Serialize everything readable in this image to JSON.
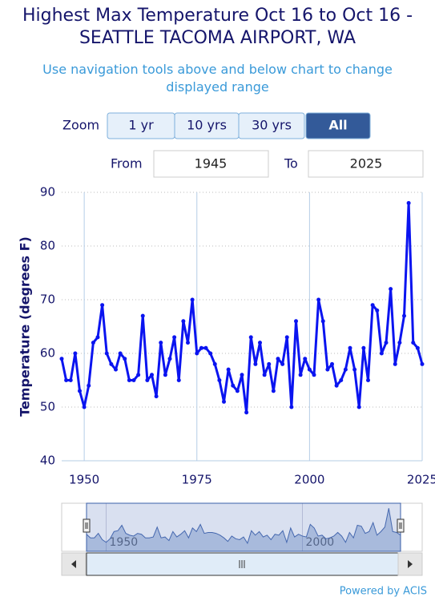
{
  "chart_data": {
    "type": "line",
    "title": "Highest Max Temperature Oct 16 to Oct 16 - SEATTLE TACOMA AIRPORT, WA",
    "subtitle": "Use navigation tools above and below chart to change displayed range",
    "y_label": "Temperature (degrees F)",
    "x": [
      1945,
      1946,
      1947,
      1948,
      1949,
      1950,
      1951,
      1952,
      1953,
      1954,
      1955,
      1956,
      1957,
      1958,
      1959,
      1960,
      1961,
      1962,
      1963,
      1964,
      1965,
      1966,
      1967,
      1968,
      1969,
      1970,
      1971,
      1972,
      1973,
      1974,
      1975,
      1976,
      1977,
      1978,
      1979,
      1980,
      1981,
      1982,
      1983,
      1984,
      1985,
      1986,
      1987,
      1988,
      1989,
      1990,
      1991,
      1992,
      1993,
      1994,
      1995,
      1996,
      1997,
      1998,
      1999,
      2000,
      2001,
      2002,
      2003,
      2004,
      2005,
      2006,
      2007,
      2008,
      2009,
      2010,
      2011,
      2012,
      2013,
      2014,
      2015,
      2016,
      2017,
      2018,
      2019,
      2020,
      2021,
      2022,
      2023,
      2024,
      2025
    ],
    "series": [
      {
        "color": "#0a14f0",
        "values": [
          59,
          55,
          55,
          60,
          53,
          50,
          54,
          62,
          63,
          69,
          60,
          58,
          57,
          60,
          59,
          55,
          55,
          56,
          67,
          55,
          56,
          52,
          62,
          56,
          59,
          63,
          55,
          66,
          62,
          70,
          60,
          61,
          61,
          60,
          58,
          55,
          51,
          57,
          54,
          53,
          56,
          49,
          63,
          58,
          62,
          56,
          58,
          53,
          59,
          58,
          63,
          50,
          66,
          56,
          59,
          57,
          56,
          70,
          66,
          57,
          58,
          54,
          55,
          57,
          61,
          57,
          50,
          61,
          55,
          69,
          68,
          60,
          62,
          72,
          58,
          62,
          67,
          88,
          62,
          61,
          58
        ]
      }
    ],
    "xlim": [
      1945,
      2025
    ],
    "xticks": [
      1950,
      1975,
      2000,
      2025
    ],
    "ylim": [
      40,
      90
    ],
    "yticks": [
      40,
      50,
      60,
      70,
      80,
      90
    ],
    "grid": true,
    "navigator": {
      "xticks": [
        1950,
        2000
      ]
    }
  },
  "controls": {
    "zoom_label": "Zoom",
    "zoom_buttons": [
      "1 yr",
      "10 yrs",
      "30 yrs",
      "All"
    ],
    "from_label": "From",
    "from_value": "1945",
    "to_label": "To",
    "to_value": "2025"
  },
  "footer": "Powered by ACIS"
}
